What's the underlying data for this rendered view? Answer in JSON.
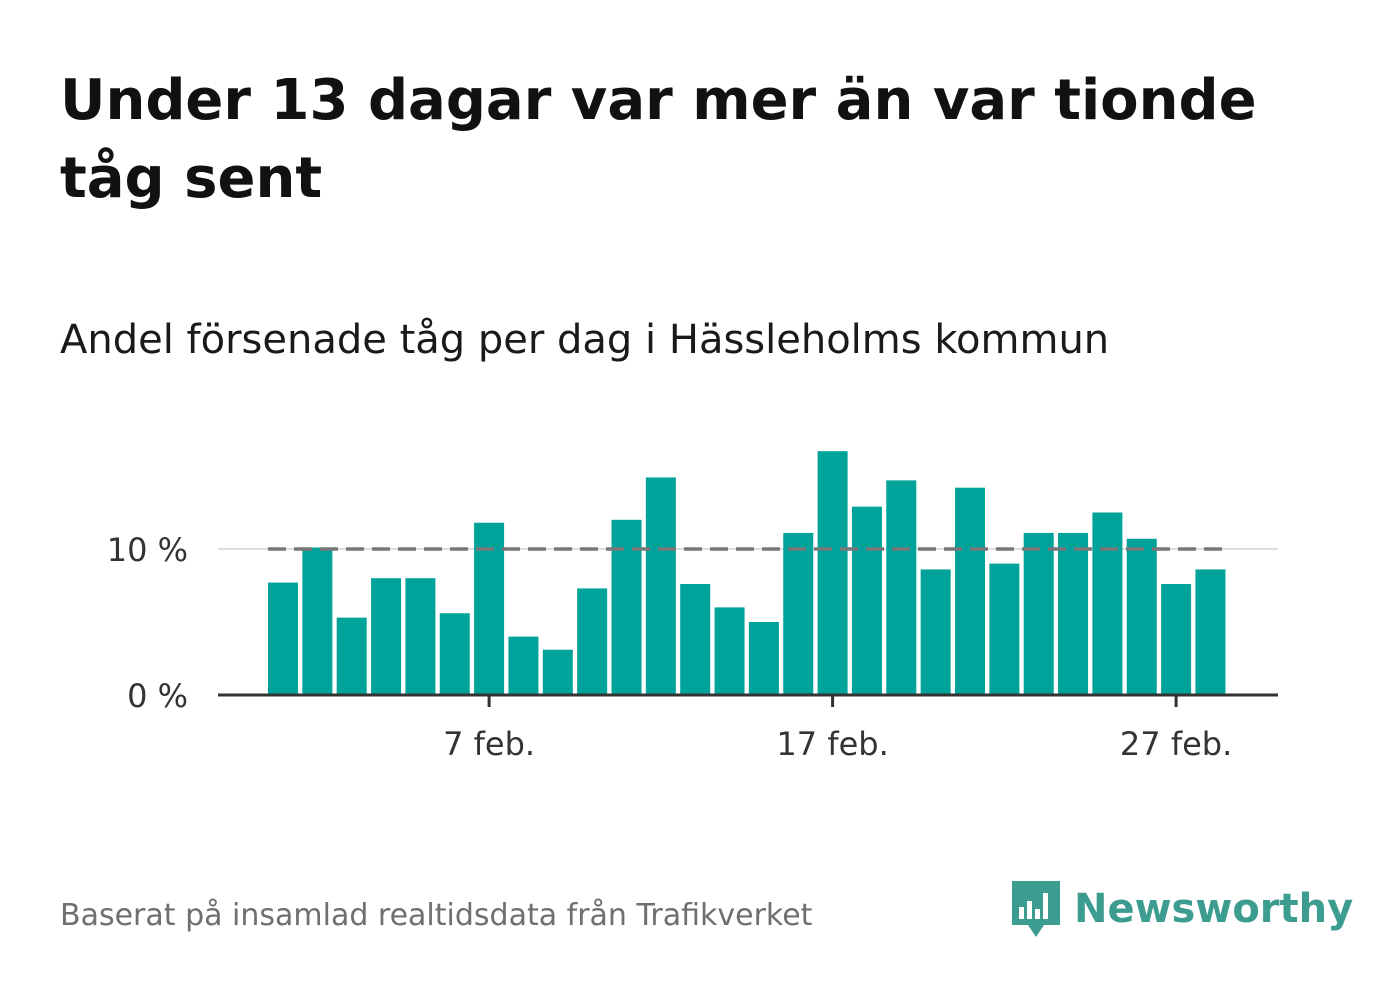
{
  "title": "Under 13 dagar var mer än var tionde tåg sent",
  "subtitle": "Andel försenade tåg per dag i Hässleholms kommun",
  "source": "Baserat på insamlad realtidsdata från Trafikverket",
  "brand": {
    "name": "Newsworthy",
    "color": "#3d9c90",
    "icon": "newsworthy-chart-bubble-icon"
  },
  "colors": {
    "bar": "#00a39a",
    "reference_line": "#777777",
    "axis": "#333333",
    "grid": "#dddddd"
  },
  "chart_data": {
    "type": "bar",
    "x": [
      "1 feb.",
      "2 feb.",
      "3 feb.",
      "4 feb.",
      "5 feb.",
      "6 feb.",
      "7 feb.",
      "8 feb.",
      "9 feb.",
      "10 feb.",
      "11 feb.",
      "12 feb.",
      "13 feb.",
      "14 feb.",
      "15 feb.",
      "16 feb.",
      "17 feb.",
      "18 feb.",
      "19 feb.",
      "20 feb.",
      "21 feb.",
      "22 feb.",
      "23 feb.",
      "24 feb.",
      "25 feb.",
      "26 feb.",
      "27 feb.",
      "28 feb."
    ],
    "values": [
      7.7,
      10.1,
      5.3,
      8.0,
      8.0,
      5.6,
      11.8,
      4.0,
      3.1,
      7.3,
      12.0,
      14.9,
      7.6,
      6.0,
      5.0,
      11.1,
      16.7,
      12.9,
      14.7,
      8.6,
      14.2,
      9.0,
      11.1,
      11.1,
      12.5,
      10.7,
      7.6,
      8.6
    ],
    "reference_line": 10,
    "ylim": [
      0,
      17
    ],
    "yticks": [
      {
        "value": 0,
        "label": "0 %"
      },
      {
        "value": 10,
        "label": "10 %"
      }
    ],
    "xticks": [
      {
        "x": "7 feb.",
        "label": "7 feb."
      },
      {
        "x": "17 feb.",
        "label": "17 feb."
      },
      {
        "x": "27 feb.",
        "label": "27 feb."
      }
    ],
    "grid": true,
    "xlabel": "",
    "ylabel": ""
  }
}
